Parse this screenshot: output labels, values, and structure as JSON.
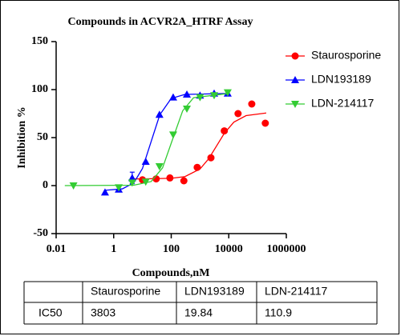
{
  "chart_data": {
    "type": "scatter",
    "title": "Compounds in ACVR2A_HTRF Assay",
    "xlabel": "Compounds,nM",
    "ylabel": "Inhibition %",
    "xscale": "log",
    "xlim": [
      0.01,
      1000000
    ],
    "xticks": [
      0.01,
      1,
      100,
      10000,
      1000000
    ],
    "ylim": [
      -50,
      150
    ],
    "yticks": [
      -50,
      0,
      50,
      100,
      150
    ],
    "legend": "upper right",
    "series": [
      {
        "name": "Staurosporine",
        "color": "#ff0000",
        "marker": "circle",
        "x": [
          10,
          30,
          90,
          275,
          800,
          2400,
          7000,
          21000,
          63000,
          186000
        ],
        "values": [
          6,
          7,
          8,
          5,
          19,
          29,
          57,
          75,
          85,
          65
        ],
        "fit": {
          "x": [
            5,
            10,
            100,
            300,
            1000,
            2000,
            3803,
            7000,
            15000,
            40000,
            200000
          ],
          "y": [
            7,
            7,
            7.6,
            9.4,
            17.3,
            27.9,
            41.5,
            54.5,
            66.1,
            72.9,
            75.6
          ]
        }
      },
      {
        "name": "LDN193189",
        "color": "#0000ff",
        "marker": "triangle-up",
        "x": [
          0.5,
          1.5,
          4.4,
          13,
          39,
          117,
          350,
          1000,
          3100,
          9200
        ],
        "values": [
          -7,
          -4,
          8,
          25,
          74,
          92,
          95,
          94,
          96,
          96
        ],
        "errors": [
          null,
          null,
          6,
          null,
          null,
          null,
          null,
          null,
          null,
          null
        ],
        "fit": {
          "x": [
            0.5,
            2,
            5,
            10,
            19.84,
            40,
            100,
            300,
            10000
          ],
          "y": [
            -4.9,
            -3.4,
            2.8,
            17.8,
            45.5,
            73.7,
            90.8,
            95,
            96
          ]
        }
      },
      {
        "name": "LDN-214117",
        "color": "#33cc33",
        "marker": "triangle-down",
        "x": [
          0.04,
          1.5,
          4.4,
          13,
          39,
          117,
          350,
          1000,
          3100,
          9200
        ],
        "values": [
          0,
          -2,
          3,
          4,
          20,
          53,
          80,
          92,
          94,
          97
        ],
        "fit": {
          "x": [
            0.02,
            5,
            20,
            50,
            110.9,
            250,
            600,
            10000
          ],
          "y": [
            0,
            0.4,
            4.2,
            18.5,
            48,
            77.9,
            91.6,
            96
          ]
        }
      }
    ]
  },
  "table": {
    "header": [
      "Staurosporine",
      "LDN193189",
      "LDN-214117"
    ],
    "row_label": "IC50",
    "values": [
      3803,
      19.84,
      110.9
    ]
  }
}
